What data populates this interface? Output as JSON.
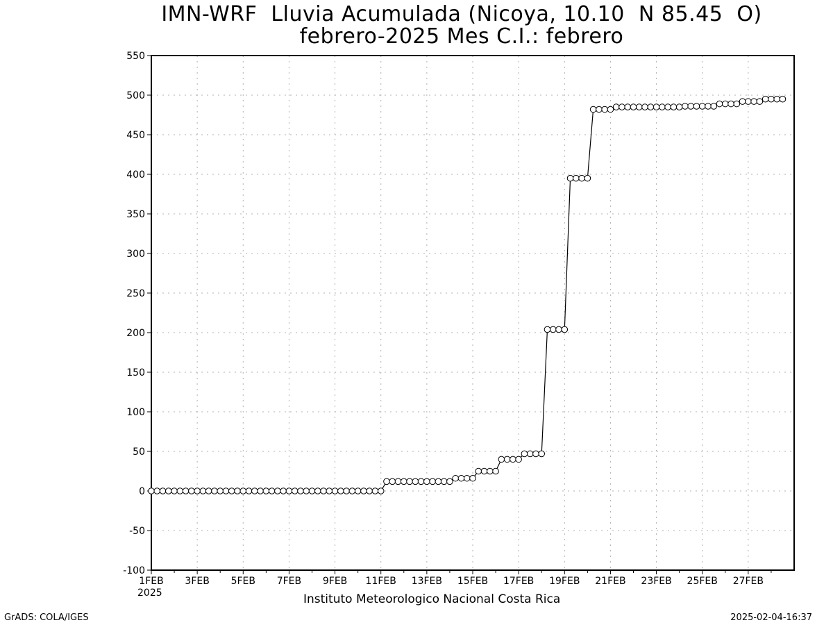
{
  "chart_data": {
    "type": "line",
    "title": "IMN-WRF  Lluvia Acumulada (Nicoya, 10.10  N 85.45  O)",
    "subtitle": "febrero-2025 Mes C.I.: febrero",
    "xlabel": "Instituto Meteorologico Nacional Costa Rica",
    "ylabel": "",
    "ylim": [
      -100,
      550
    ],
    "yticks": [
      -100,
      -50,
      0,
      50,
      100,
      150,
      200,
      250,
      300,
      350,
      400,
      450,
      500,
      550
    ],
    "xticks": [
      "1FEB",
      "3FEB",
      "5FEB",
      "7FEB",
      "9FEB",
      "11FEB",
      "13FEB",
      "15FEB",
      "17FEB",
      "19FEB",
      "21FEB",
      "23FEB",
      "25FEB",
      "27FEB"
    ],
    "xtick_year": "2025",
    "grid": true,
    "marker": "open-circle",
    "x_start": "2025-02-01T00:00",
    "x_interval_hours": 6,
    "series": [
      {
        "values": [
          0,
          0,
          0,
          0,
          0,
          0,
          0,
          0,
          0,
          0,
          0,
          0,
          0,
          0,
          0,
          0,
          0,
          0,
          0,
          0,
          0,
          0,
          0,
          0,
          0,
          0,
          0,
          0,
          0,
          0,
          0,
          0,
          0,
          0,
          0,
          0,
          0,
          0,
          0,
          0,
          0,
          12,
          12,
          12,
          12,
          12,
          12,
          12,
          12,
          12,
          12,
          12,
          12,
          16,
          16,
          16,
          16,
          25,
          25,
          25,
          25,
          40,
          40,
          40,
          40,
          47,
          47,
          47,
          47,
          204,
          204,
          204,
          204,
          395,
          395,
          395,
          395,
          482,
          482,
          482,
          482,
          485,
          485,
          485,
          485,
          485,
          485,
          485,
          485,
          485,
          485,
          485,
          485,
          486,
          486,
          486,
          486,
          486,
          486,
          489,
          489,
          489,
          489,
          492,
          492,
          492,
          492,
          495,
          495,
          495,
          495
        ]
      }
    ]
  },
  "footer": {
    "left": "GrADS: COLA/IGES",
    "right": "2025-02-04-16:37"
  }
}
